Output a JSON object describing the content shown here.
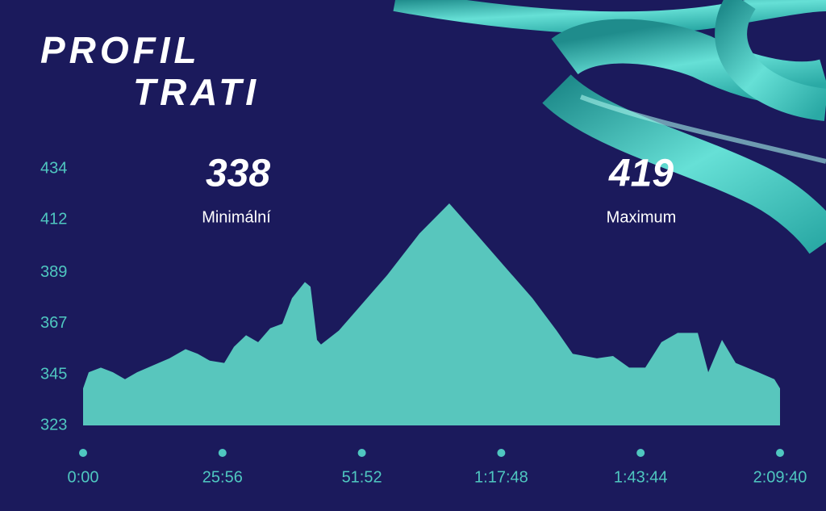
{
  "chart_data": {
    "type": "area",
    "title_lines": [
      "PROFIL",
      "TRATI"
    ],
    "annotations": [
      {
        "value": "338",
        "label": "Minimální"
      },
      {
        "value": "419",
        "label": "Maximum"
      }
    ],
    "x": [
      0,
      63,
      198,
      333,
      468,
      603,
      783,
      964,
      1144,
      1279,
      1414,
      1576,
      1684,
      1819,
      1954,
      2089,
      2224,
      2332,
      2476,
      2539,
      2611,
      2656,
      2855,
      3080,
      3395,
      3755,
      4088,
      4385,
      4700,
      5016,
      5286,
      5466,
      5736,
      5916,
      6096,
      6276,
      6456,
      6637,
      6862,
      6979,
      7132,
      7285,
      7537,
      7717,
      7780
    ],
    "values": [
      339,
      346,
      348,
      346,
      343,
      346,
      349,
      352,
      356,
      354,
      351,
      350,
      357,
      362,
      359,
      365,
      367,
      378,
      385,
      383,
      360,
      358,
      364,
      374,
      388,
      406,
      419,
      406,
      392,
      378,
      364,
      354,
      352,
      353,
      348,
      348,
      359,
      363,
      363,
      346,
      360,
      350,
      346,
      343,
      339
    ],
    "color": "#58c6bd",
    "xlim": [
      0,
      7780
    ],
    "xticks": [
      {
        "value": 0,
        "label": "0:00"
      },
      {
        "value": 1556,
        "label": "25:56"
      },
      {
        "value": 3112,
        "label": "51:52"
      },
      {
        "value": 4668,
        "label": "1:17:48"
      },
      {
        "value": 6224,
        "label": "1:43:44"
      },
      {
        "value": 7780,
        "label": "2:09:40"
      }
    ],
    "ylim": [
      323,
      434
    ],
    "yticks": [
      323,
      345,
      367,
      389,
      412,
      434
    ]
  }
}
